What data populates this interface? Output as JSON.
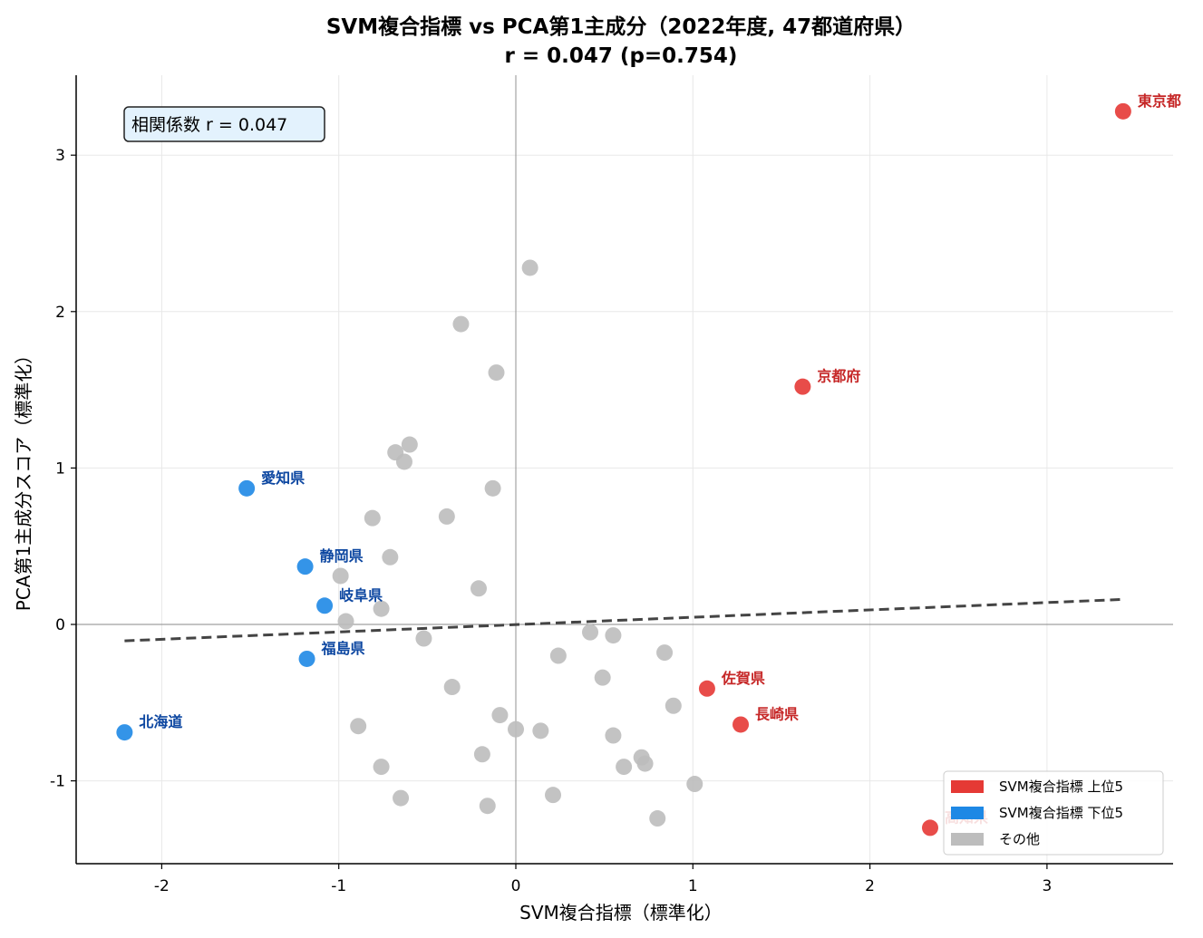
{
  "chart_data": {
    "type": "scatter",
    "title": "SVM複合指標 vs PCA第1主成分（2022年度, 47都道府県）",
    "subtitle": "r = 0.047 (p=0.754)",
    "xlabel": "SVM複合指標（標準化）",
    "ylabel": "PCA第1主成分スコア（標準化）",
    "xlim": [
      -2.5,
      3.7
    ],
    "ylim": [
      -1.52,
      3.5
    ],
    "xticks": [
      -2,
      -1,
      0,
      1,
      2,
      3
    ],
    "xtick_labels": [
      "-2",
      "-1",
      "0",
      "1",
      "2",
      "3"
    ],
    "yticks": [
      -1,
      0,
      1,
      2,
      3
    ],
    "ytick_labels": [
      "-1",
      "0",
      "1",
      "2",
      "3"
    ],
    "grid": true,
    "legend_position": "lower-right",
    "annotation": "相関係数 r = 0.047",
    "colors": {
      "top": "#e53935",
      "top_label": "#c62828",
      "bottom": "#1e88e5",
      "bottom_label": "#0d47a1",
      "other": "#bdbdbd",
      "trend": "#444444"
    },
    "trend_line": {
      "x": [
        -2.21,
        3.43
      ],
      "y": [
        -0.105,
        0.16
      ]
    },
    "series": [
      {
        "name": "SVM複合指標 上位5",
        "points": [
          {
            "x": 3.43,
            "y": 3.28,
            "label": "東京都"
          },
          {
            "x": 1.62,
            "y": 1.52,
            "label": "京都府"
          },
          {
            "x": 1.08,
            "y": -0.41,
            "label": "佐賀県"
          },
          {
            "x": 1.27,
            "y": -0.64,
            "label": "長崎県"
          },
          {
            "x": 2.34,
            "y": -1.3,
            "label": "高知県"
          }
        ]
      },
      {
        "name": "SVM複合指標 下位5",
        "points": [
          {
            "x": -1.52,
            "y": 0.87,
            "label": "愛知県"
          },
          {
            "x": -1.19,
            "y": 0.37,
            "label": "静岡県"
          },
          {
            "x": -1.08,
            "y": 0.12,
            "label": "岐阜県"
          },
          {
            "x": -1.18,
            "y": -0.22,
            "label": "福島県"
          },
          {
            "x": -2.21,
            "y": -0.69,
            "label": "北海道"
          }
        ]
      },
      {
        "name": "その他",
        "points": [
          {
            "x": 0.08,
            "y": 2.28
          },
          {
            "x": -0.31,
            "y": 1.92
          },
          {
            "x": -0.11,
            "y": 1.61
          },
          {
            "x": -0.6,
            "y": 1.15
          },
          {
            "x": -0.68,
            "y": 1.1
          },
          {
            "x": -0.63,
            "y": 1.04
          },
          {
            "x": -0.13,
            "y": 0.87
          },
          {
            "x": -0.81,
            "y": 0.68
          },
          {
            "x": -0.39,
            "y": 0.69
          },
          {
            "x": -0.71,
            "y": 0.43
          },
          {
            "x": -0.99,
            "y": 0.31
          },
          {
            "x": -0.21,
            "y": 0.23
          },
          {
            "x": -0.76,
            "y": 0.1
          },
          {
            "x": -0.52,
            "y": -0.09
          },
          {
            "x": 0.42,
            "y": -0.05
          },
          {
            "x": 0.55,
            "y": -0.07
          },
          {
            "x": 0.24,
            "y": -0.2
          },
          {
            "x": 0.84,
            "y": -0.18
          },
          {
            "x": 0.49,
            "y": -0.34
          },
          {
            "x": -0.36,
            "y": -0.4
          },
          {
            "x": 0.89,
            "y": -0.52
          },
          {
            "x": -0.09,
            "y": -0.58
          },
          {
            "x": -0.89,
            "y": -0.65
          },
          {
            "x": 0.0,
            "y": -0.67
          },
          {
            "x": 0.14,
            "y": -0.68
          },
          {
            "x": 0.55,
            "y": -0.71
          },
          {
            "x": -0.19,
            "y": -0.83
          },
          {
            "x": 0.71,
            "y": -0.85
          },
          {
            "x": 0.73,
            "y": -0.89
          },
          {
            "x": 0.61,
            "y": -0.91
          },
          {
            "x": -0.76,
            "y": -0.91
          },
          {
            "x": 1.01,
            "y": -1.02
          },
          {
            "x": 0.21,
            "y": -1.09
          },
          {
            "x": -0.65,
            "y": -1.11
          },
          {
            "x": -0.16,
            "y": -1.16
          },
          {
            "x": 0.8,
            "y": -1.24
          },
          {
            "x": -0.96,
            "y": 0.02
          }
        ]
      }
    ]
  }
}
